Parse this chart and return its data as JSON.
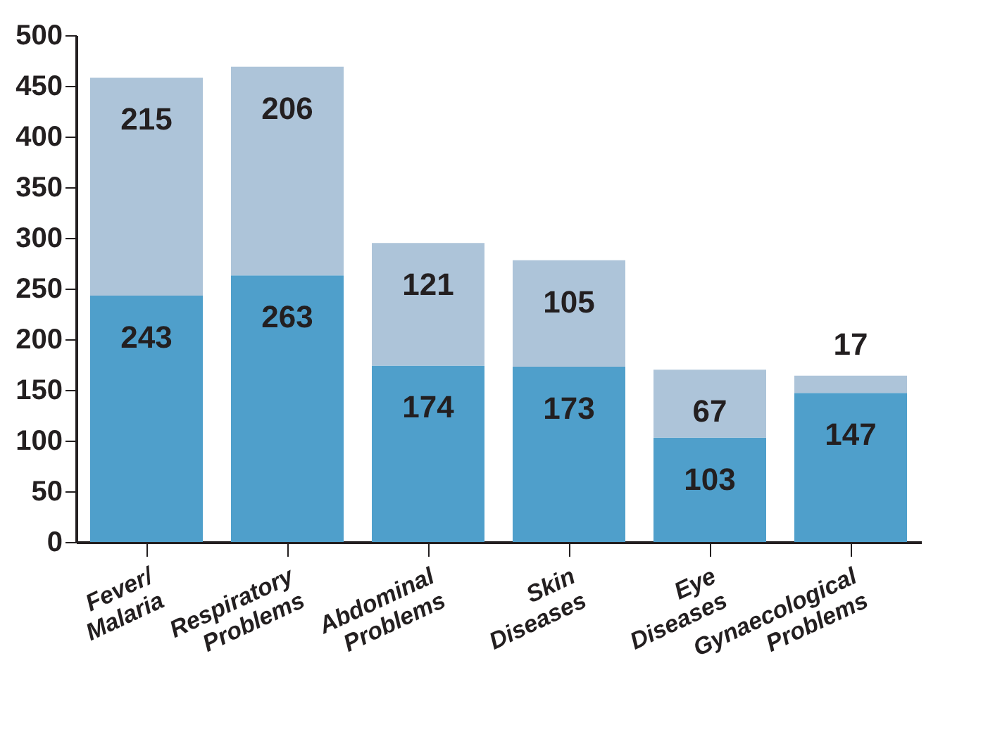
{
  "chart_data": {
    "type": "bar",
    "stacked": true,
    "data_labels": true,
    "grid": false,
    "categories": [
      "Fever/ Malaria",
      "Respiratory Problems",
      "Abdominal Problems",
      "Skin Diseases",
      "Eye Diseases",
      "Gynaecological Problems"
    ],
    "series": [
      {
        "color": "#4f9fcb",
        "values": [
          243,
          263,
          174,
          173,
          103,
          147
        ]
      },
      {
        "color": "#adc4d9",
        "values": [
          215,
          206,
          121,
          105,
          67,
          17
        ]
      }
    ],
    "ylim": [
      0,
      500
    ],
    "yticks": [
      0,
      50,
      100,
      150,
      200,
      250,
      300,
      350,
      400,
      450,
      500
    ]
  }
}
